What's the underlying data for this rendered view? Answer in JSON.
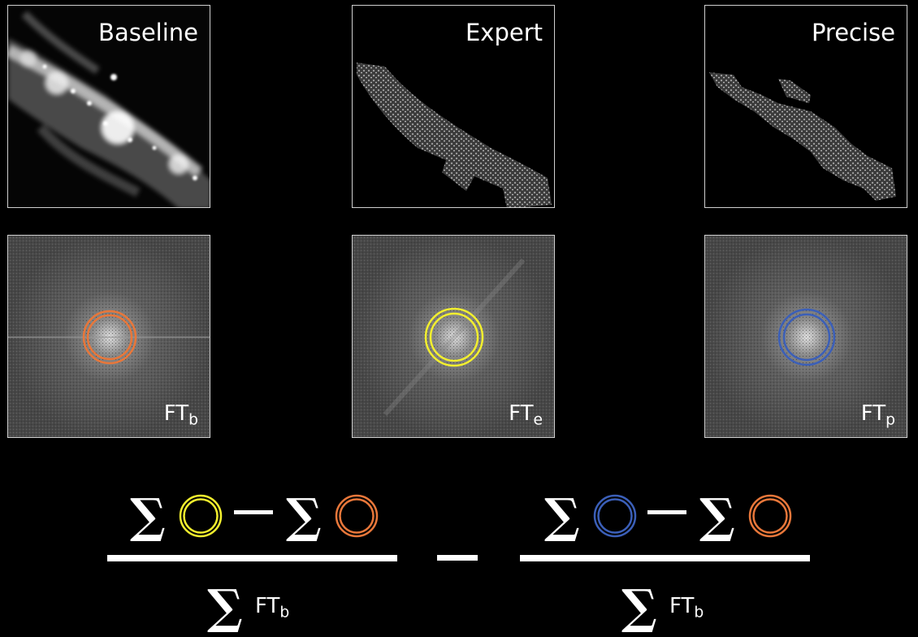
{
  "panels": {
    "baseline": {
      "label": "Baseline"
    },
    "expert": {
      "label": "Expert"
    },
    "precise": {
      "label": "Precise"
    }
  },
  "fourier": {
    "b": {
      "prefix": "FT",
      "sub": "b",
      "ring_color": "#e8773a"
    },
    "e": {
      "prefix": "FT",
      "sub": "e",
      "ring_color": "#f2ef2e"
    },
    "p": {
      "prefix": "FT",
      "sub": "p",
      "ring_color": "#3b5fb8"
    }
  },
  "formula": {
    "sigma": "∑",
    "den_prefix": "FT",
    "den_sub": "b",
    "colors": {
      "yellow": "#f2ef2e",
      "orange": "#e8773a",
      "blue": "#3b5fb8"
    }
  }
}
